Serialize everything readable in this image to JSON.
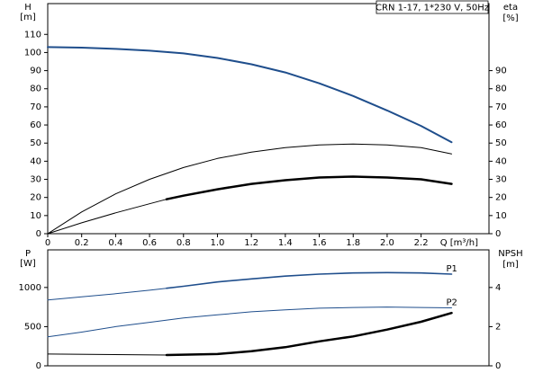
{
  "chart_data": [
    {
      "type": "line",
      "title": "CRN 1-17, 1*230 V, 50Hz",
      "xlabel": "Q [m³/h]",
      "ylabel": "H",
      "yunit": "[m]",
      "y2label": "eta",
      "y2unit": "[%]",
      "xlim": [
        0,
        2.6
      ],
      "xticks": [
        0,
        0.2,
        0.4,
        0.6,
        0.8,
        {
          "value": 1,
          "label": "1.0"
        },
        1.2,
        1.4,
        1.6,
        1.8,
        {
          "value": 2,
          "label": "2.0"
        },
        2.2
      ],
      "ylim": [
        0,
        127
      ],
      "yticks": [
        0,
        10,
        20,
        30,
        40,
        50,
        60,
        70,
        80,
        90,
        100,
        110
      ],
      "y2lim": [
        0,
        127
      ],
      "y2ticks": [
        0,
        10,
        20,
        30,
        40,
        50,
        60,
        70,
        80,
        90
      ],
      "series": [
        {
          "color": "#1f4e8c",
          "width": 2,
          "x": [
            0,
            0.2,
            0.4,
            0.6,
            0.8,
            1,
            1.2,
            1.4,
            1.6,
            1.8,
            2,
            2.2,
            2.38
          ],
          "values": [
            103,
            102.7,
            102,
            101,
            99.5,
            97,
            93.5,
            89,
            83,
            76,
            68,
            59.5,
            50.5
          ]
        },
        {
          "color": "#000000",
          "width": 1,
          "axis": "y2",
          "x": [
            0,
            0.2,
            0.4,
            0.6,
            0.8,
            1,
            1.2,
            1.4,
            1.6,
            1.8,
            2,
            2.2,
            2.38
          ],
          "values": [
            0,
            12,
            22,
            30,
            36.5,
            41.5,
            45,
            47.5,
            49,
            49.5,
            49,
            47.5,
            44
          ]
        },
        {
          "color": "#000000",
          "width": 1,
          "axis": "y2",
          "x": [
            0,
            0.2,
            0.4,
            0.6,
            0.7
          ],
          "values": [
            0,
            6,
            11.5,
            16.5,
            19
          ]
        },
        {
          "color": "#000000",
          "width": 2.5,
          "axis": "y2",
          "x": [
            0.7,
            0.8,
            1,
            1.2,
            1.4,
            1.6,
            1.8,
            2,
            2.2,
            2.38
          ],
          "values": [
            19,
            21,
            24.5,
            27.5,
            29.5,
            31,
            31.5,
            31,
            30,
            27.5
          ]
        }
      ]
    },
    {
      "type": "line",
      "ylabel": "P",
      "yunit": "[W]",
      "y2label": "NPSH",
      "y2unit": "[m]",
      "xlim": [
        0,
        2.6
      ],
      "ylim": [
        0,
        1480
      ],
      "yticks": [
        0,
        500,
        1000
      ],
      "y2lim": [
        0,
        5.92
      ],
      "y2ticks": [
        0,
        2,
        4
      ],
      "series": [
        {
          "color": "#1f4e8c",
          "width": 1,
          "x": [
            0,
            0.2,
            0.4,
            0.6,
            0.7
          ],
          "values": [
            840,
            880,
            920,
            965,
            990
          ]
        },
        {
          "name": "P1",
          "color": "#1f4e8c",
          "width": 1.6,
          "x": [
            0.7,
            0.8,
            1,
            1.2,
            1.4,
            1.6,
            1.8,
            2,
            2.2,
            2.38
          ],
          "values": [
            990,
            1015,
            1070,
            1110,
            1145,
            1170,
            1185,
            1190,
            1185,
            1170
          ]
        },
        {
          "name": "P2",
          "color": "#1f4e8c",
          "width": 1,
          "x": [
            0,
            0.2,
            0.4,
            0.6,
            0.8,
            1,
            1.2,
            1.4,
            1.6,
            1.8,
            2,
            2.2,
            2.38
          ],
          "values": [
            370,
            430,
            500,
            555,
            610,
            650,
            690,
            715,
            735,
            745,
            750,
            745,
            740
          ]
        },
        {
          "color": "#000000",
          "width": 1,
          "axis": "y2",
          "x": [
            0,
            0.7
          ],
          "values": [
            0.6,
            0.55
          ]
        },
        {
          "color": "#000000",
          "width": 2.5,
          "axis": "y2",
          "x": [
            0.7,
            1,
            1.2,
            1.4,
            1.6,
            1.8,
            2,
            2.2,
            2.38
          ],
          "values": [
            0.55,
            0.6,
            0.75,
            0.95,
            1.25,
            1.5,
            1.85,
            2.25,
            2.7
          ]
        }
      ]
    }
  ]
}
